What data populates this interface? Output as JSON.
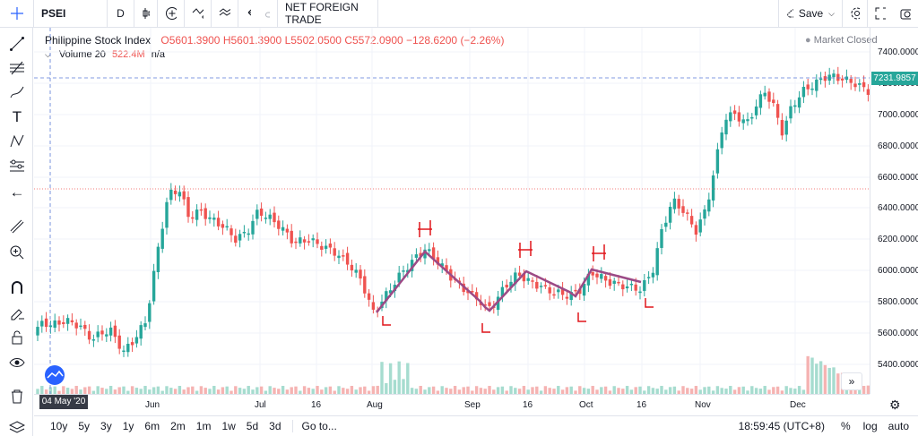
{
  "toolbar": {
    "symbol": "PSEI",
    "interval": "D",
    "indicator_name": "NET FOREIGN TRADE",
    "save_label": "Save"
  },
  "legend": {
    "title": "Philippine Stock Index",
    "open": "O5601.3900",
    "high": "H5601.3900",
    "low": "L5502.0500",
    "close": "C5572.0900",
    "change": "−128.6200 (−2.26%)",
    "volume_label": "Volume 20",
    "volume_value": "522.4M",
    "volume_ma": "n/a",
    "market_status": "Market Closed"
  },
  "price_axis": {
    "labels": [
      "7400.0000",
      "7200.0000",
      "7000.0000",
      "6800.0000",
      "6600.0000",
      "6400.0000",
      "6200.0000",
      "6000.0000",
      "5800.0000",
      "5600.0000",
      "5400.0000"
    ],
    "current_price": "7231.9857"
  },
  "time_axis": {
    "labels": [
      "Jun",
      "Jul",
      "16",
      "Aug",
      "Sep",
      "16",
      "Oct",
      "16",
      "Nov",
      "Dec"
    ],
    "crosshair_date": "04 May '20"
  },
  "bottom": {
    "timeframes": [
      "10y",
      "5y",
      "3y",
      "1y",
      "6m",
      "2m",
      "1m",
      "1w",
      "5d",
      "3d"
    ],
    "goto": "Go to...",
    "clock": "18:59:45 (UTC+8)",
    "percent": "%",
    "log": "log",
    "auto": "auto"
  },
  "annotations": {
    "head": "H",
    "low": "L"
  },
  "colors": {
    "up": "#26a69a",
    "down": "#ef5350",
    "pattern": "#9c4a86",
    "ink": "#e0161b"
  }
}
